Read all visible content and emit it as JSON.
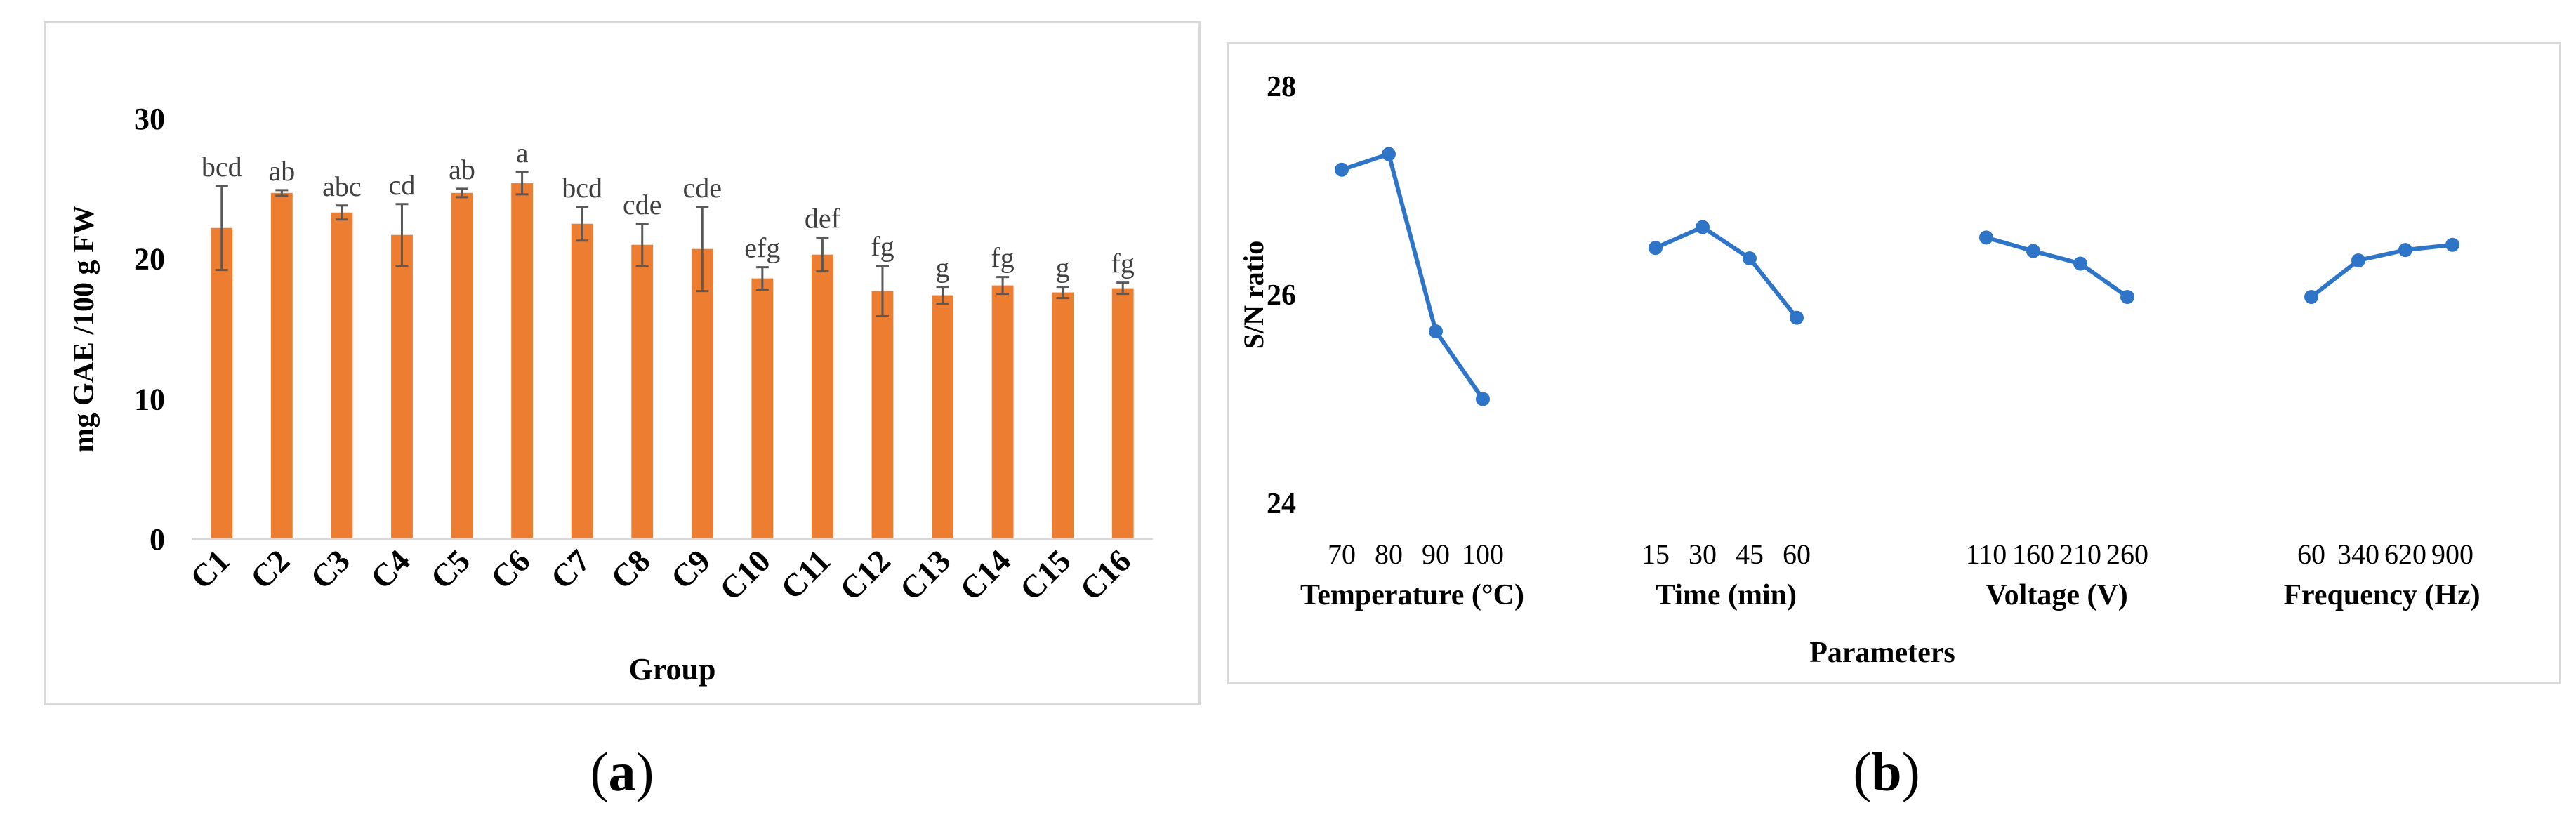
{
  "chart_data": [
    {
      "type": "bar",
      "panel_label": "a",
      "xlabel": "Group",
      "ylabel": "mg GAE /100 g FW",
      "ylim": [
        0,
        30
      ],
      "yticks": [
        "0",
        "10",
        "20",
        "30"
      ],
      "grid": false,
      "bar_color": "#ed7d31",
      "categories": [
        "C1",
        "C2",
        "C3",
        "C4",
        "C5",
        "C6",
        "C7",
        "C8",
        "C9",
        "C10",
        "C11",
        "C12",
        "C13",
        "C14",
        "C15",
        "C16"
      ],
      "values": [
        22.2,
        24.7,
        23.3,
        21.7,
        24.7,
        25.4,
        22.5,
        21.0,
        20.7,
        18.6,
        20.3,
        17.7,
        17.4,
        18.1,
        17.6,
        17.9
      ],
      "errors": [
        3.0,
        0.2,
        0.5,
        2.2,
        0.3,
        0.8,
        1.2,
        1.5,
        3.0,
        0.8,
        1.2,
        1.8,
        0.6,
        0.6,
        0.4,
        0.4
      ],
      "significance_letters": [
        "bcd",
        "ab",
        "abc",
        "cd",
        "ab",
        "a",
        "bcd",
        "cde",
        "cde",
        "efg",
        "def",
        "fg",
        "g",
        "fg",
        "g",
        "fg"
      ]
    },
    {
      "type": "line",
      "panel_label": "b",
      "xlabel": "Parameters",
      "ylabel": "S/N ratio",
      "ylim": [
        24,
        28
      ],
      "yticks": [
        "24",
        "26",
        "28"
      ],
      "grid": false,
      "line_color": "#2e75c7",
      "groups": [
        {
          "name": "Temperature (°C)",
          "x": [
            "70",
            "80",
            "90",
            "100"
          ],
          "values": [
            27.2,
            27.35,
            25.65,
            25.0
          ]
        },
        {
          "name": "Time (min)",
          "x": [
            "15",
            "30",
            "45",
            "60"
          ],
          "values": [
            26.45,
            26.65,
            26.35,
            25.78
          ]
        },
        {
          "name": "Voltage (V)",
          "x": [
            "110",
            "160",
            "210",
            "260"
          ],
          "values": [
            26.55,
            26.42,
            26.3,
            25.98
          ]
        },
        {
          "name": "Frequency (Hz)",
          "x": [
            "60",
            "340",
            "620",
            "900"
          ],
          "values": [
            25.98,
            26.33,
            26.43,
            26.48
          ]
        }
      ]
    }
  ]
}
